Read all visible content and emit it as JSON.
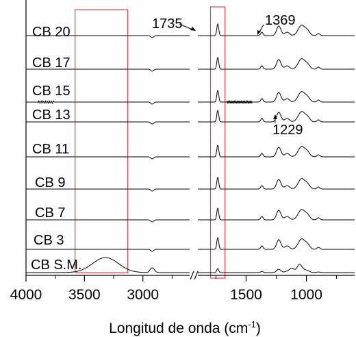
{
  "chart_data": {
    "type": "line",
    "title": "",
    "xlabel": "Longitud de onda (cm",
    "xlabel_sup": "-1",
    "xlabel_close": ")",
    "ylabel": "",
    "x_axis_break": true,
    "xlim_left": [
      4000,
      2600
    ],
    "xlim_right": [
      1900,
      600
    ],
    "x_ticks": [
      {
        "value": 4000,
        "label": "4000"
      },
      {
        "value": 3500,
        "label": "3500"
      },
      {
        "value": 3000,
        "label": "3000"
      },
      {
        "value": 1500,
        "label": "1500"
      },
      {
        "value": 1000,
        "label": "1000"
      }
    ],
    "series": [
      {
        "name": "CB 20"
      },
      {
        "name": "CB 17"
      },
      {
        "name": "CB 15"
      },
      {
        "name": "CB 13"
      },
      {
        "name": "CB 11"
      },
      {
        "name": "CB 9"
      },
      {
        "name": "CB 7"
      },
      {
        "name": "CB 3"
      },
      {
        "name": "CB S.M."
      }
    ],
    "annotations": [
      {
        "text": "1735",
        "x": 1735,
        "series": "CB 20"
      },
      {
        "text": "1369",
        "x": 1369,
        "series": "CB 20"
      },
      {
        "text": "1229",
        "x": 1229,
        "series": "CB 13"
      }
    ],
    "highlight_regions": [
      {
        "x_start": 3580,
        "x_end": 3130
      },
      {
        "x_start": 1795,
        "x_end": 1675
      }
    ],
    "colors": {
      "line": "#000000",
      "highlight": "#e8474f"
    }
  }
}
